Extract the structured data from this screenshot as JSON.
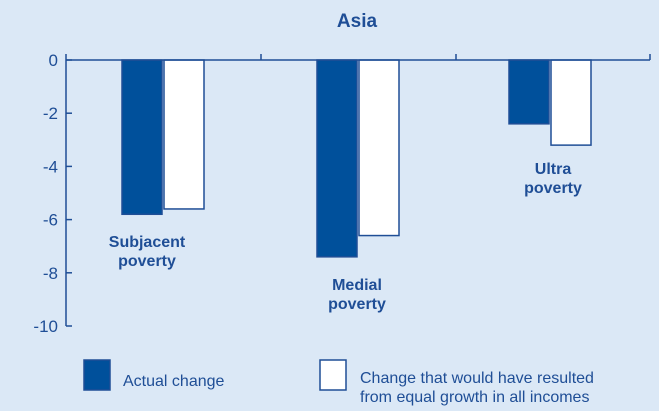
{
  "chart_data": {
    "type": "bar",
    "title": "Asia",
    "categories": [
      "Subjacent poverty",
      "Medial poverty",
      "Ultra poverty"
    ],
    "category_annotations": [
      [
        "Subjacent",
        "poverty"
      ],
      [
        "Medial",
        "poverty"
      ],
      [
        "Ultra",
        "poverty"
      ]
    ],
    "series": [
      {
        "name": "Actual change",
        "values": [
          -5.8,
          -7.4,
          -2.4
        ],
        "color": "#00509b"
      },
      {
        "name": "Change that would have resulted from equal growth in all incomes",
        "legend_lines": [
          "Change that would have resulted",
          "from equal growth in all incomes"
        ],
        "values": [
          -5.6,
          -6.6,
          -3.2
        ],
        "color": "#ffffff"
      }
    ],
    "ylim": [
      -10,
      0
    ],
    "yticks": [
      0,
      -2,
      -4,
      -6,
      -8,
      -10
    ],
    "ytick_labels": [
      "0",
      "-2",
      "-4",
      "-6",
      "-8",
      "-10"
    ],
    "xlabel": "",
    "ylabel": "",
    "grid": false,
    "legend_position": "bottom",
    "colors": {
      "axis": "#1f4e96",
      "text": "#1f4e96",
      "background": "#dbe8f6"
    }
  }
}
